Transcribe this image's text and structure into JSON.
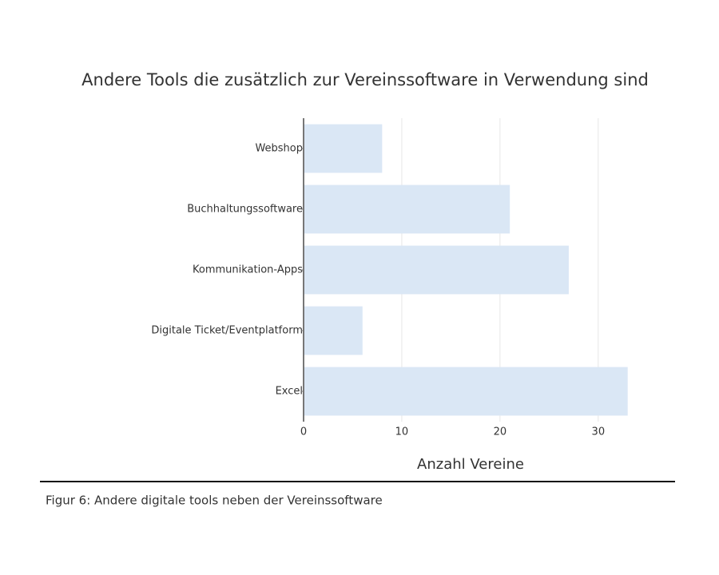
{
  "chart_data": {
    "type": "hbar",
    "title": "Andere Tools die zusätzlich zur Vereinssoftware in Verwendung sind",
    "categories": [
      "Webshop",
      "Buchhaltungssoftware",
      "Kommunikation-Apps",
      "Digitale Ticket/Eventplatform",
      "Excel"
    ],
    "values": [
      8,
      21,
      27,
      6,
      33
    ],
    "color": "#dae7f5",
    "xlabel": "Anzahl Vereine",
    "xlim": [
      0,
      34
    ],
    "xticks": [
      0,
      10,
      20,
      30
    ],
    "grid": true
  },
  "caption": "Figur 6: Andere digitale tools neben der Vereinssoftware"
}
